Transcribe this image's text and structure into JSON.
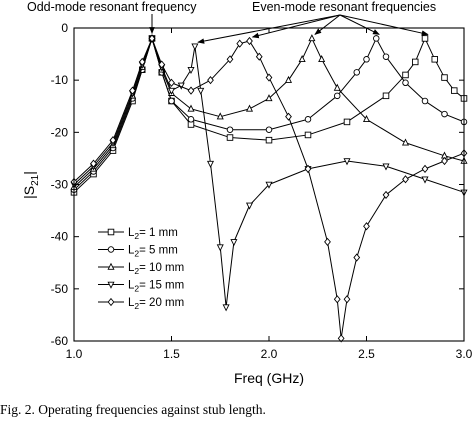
{
  "caption": "Fig. 2.   Operating frequencies against stub length.",
  "chart_data": {
    "type": "line",
    "xlabel": "Freq (GHz)",
    "ylabel": "|S21|",
    "ylabel_main": "|S",
    "ylabel_sub": "21",
    "ylabel_end": "|",
    "xlim": [
      1.0,
      3.0
    ],
    "ylim": [
      -60,
      0
    ],
    "xticks": [
      1.0,
      1.5,
      2.0,
      2.5,
      3.0
    ],
    "xtick_labels": [
      "1.0",
      "1.5",
      "2.0",
      "2.5",
      "3.0"
    ],
    "yticks": [
      0,
      -10,
      -20,
      -30,
      -40,
      -50,
      -60
    ],
    "ytick_labels": [
      "0",
      "-10",
      "-20",
      "-30",
      "-40",
      "-50",
      "-60"
    ],
    "grid": false,
    "legend_position": "lower-left",
    "annotations": {
      "odd_mode": {
        "text": "Odd-mode resonant frequency",
        "x": 1.4,
        "y": -2
      },
      "even_mode": {
        "text": "Even-mode resonant frequencies",
        "targets": [
          [
            1.62,
            -3.5
          ],
          [
            1.9,
            -2.5
          ],
          [
            2.22,
            -2.0
          ],
          [
            2.55,
            -2.0
          ],
          [
            2.8,
            -2.0
          ]
        ]
      }
    },
    "series": [
      {
        "name": "L2= 1 mm",
        "name_main": "L",
        "name_sub": "2",
        "name_rest": "= 1 mm",
        "marker": "square",
        "x": [
          1.0,
          1.1,
          1.2,
          1.3,
          1.35,
          1.4,
          1.45,
          1.5,
          1.6,
          1.8,
          2.0,
          2.2,
          2.4,
          2.6,
          2.7,
          2.75,
          2.8,
          2.85,
          2.9,
          2.95,
          3.0
        ],
        "y": [
          -31.5,
          -28,
          -23.5,
          -14,
          -8,
          -2,
          -8.5,
          -14,
          -18.5,
          -21,
          -21.5,
          -20.5,
          -18,
          -13,
          -9,
          -6.5,
          -2,
          -6,
          -9.5,
          -12,
          -13.5
        ]
      },
      {
        "name": "L2= 5 mm",
        "name_main": "L",
        "name_sub": "2",
        "name_rest": "= 5 mm",
        "marker": "circle",
        "x": [
          1.0,
          1.1,
          1.2,
          1.3,
          1.35,
          1.4,
          1.45,
          1.5,
          1.6,
          1.8,
          2.0,
          2.2,
          2.35,
          2.45,
          2.5,
          2.55,
          2.6,
          2.7,
          2.8,
          2.9,
          3.0
        ],
        "y": [
          -31,
          -27.5,
          -23,
          -13.5,
          -8,
          -2,
          -8.5,
          -14,
          -17.5,
          -19.5,
          -19.5,
          -17.5,
          -13,
          -8.5,
          -6,
          -2,
          -5.5,
          -10.5,
          -14,
          -16.5,
          -18
        ]
      },
      {
        "name": "L2= 10 mm",
        "name_main": "L",
        "name_sub": "2",
        "name_rest": "= 10 mm",
        "marker": "triangle-up",
        "x": [
          1.0,
          1.1,
          1.2,
          1.3,
          1.35,
          1.4,
          1.45,
          1.5,
          1.6,
          1.75,
          1.9,
          2.0,
          2.1,
          2.17,
          2.22,
          2.27,
          2.35,
          2.5,
          2.7,
          2.9,
          3.0
        ],
        "y": [
          -30.5,
          -27,
          -22.5,
          -13,
          -7.5,
          -2,
          -8,
          -12.5,
          -15.5,
          -17,
          -15.5,
          -13.5,
          -10,
          -6,
          -2,
          -6,
          -11.5,
          -17.5,
          -22,
          -24.5,
          -25.5
        ]
      },
      {
        "name": "L2= 15 mm",
        "name_main": "L",
        "name_sub": "2",
        "name_rest": "= 15 mm",
        "marker": "triangle-down",
        "x": [
          1.0,
          1.1,
          1.2,
          1.3,
          1.35,
          1.4,
          1.45,
          1.5,
          1.55,
          1.6,
          1.62,
          1.65,
          1.7,
          1.75,
          1.78,
          1.82,
          1.9,
          2.0,
          2.2,
          2.4,
          2.6,
          2.8,
          3.0
        ],
        "y": [
          -30,
          -26.5,
          -22,
          -12.5,
          -7,
          -2,
          -7.5,
          -12,
          -11,
          -8,
          -3.5,
          -12,
          -26,
          -42,
          -53.5,
          -41,
          -34,
          -30,
          -27,
          -25.5,
          -26.5,
          -29,
          -31.5
        ]
      },
      {
        "name": "L2= 20 mm",
        "name_main": "L",
        "name_sub": "2",
        "name_rest": "= 20 mm",
        "marker": "diamond",
        "x": [
          1.0,
          1.1,
          1.2,
          1.3,
          1.35,
          1.4,
          1.45,
          1.5,
          1.6,
          1.7,
          1.8,
          1.85,
          1.9,
          1.95,
          2.0,
          2.1,
          2.2,
          2.3,
          2.35,
          2.37,
          2.4,
          2.45,
          2.5,
          2.6,
          2.7,
          2.8,
          2.9,
          3.0
        ],
        "y": [
          -29.5,
          -26,
          -21.5,
          -12,
          -6.5,
          -2,
          -7,
          -10.5,
          -12,
          -10,
          -6,
          -3,
          -2.5,
          -5.5,
          -9.5,
          -17,
          -27,
          -41,
          -52,
          -59.5,
          -52,
          -44,
          -38,
          -32,
          -29,
          -27,
          -25.5,
          -24
        ]
      }
    ]
  }
}
